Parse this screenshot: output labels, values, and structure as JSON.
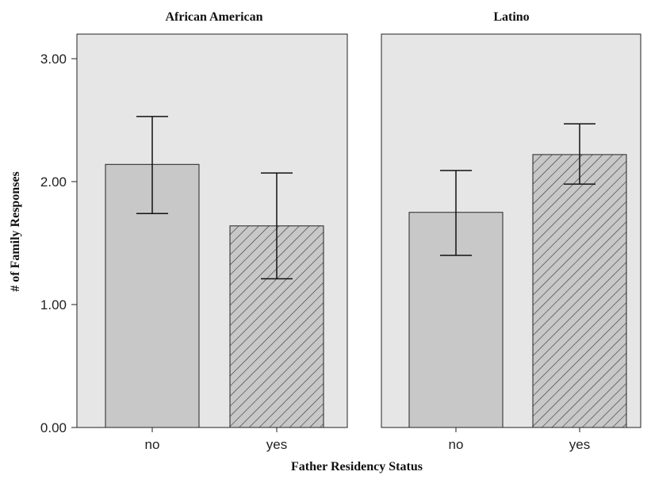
{
  "chart_data": {
    "type": "bar",
    "xlabel": "Father Residency Status",
    "ylabel": "# of Family Responses",
    "ylim": [
      0,
      3.2
    ],
    "yticks": [
      "0.00",
      "1.00",
      "2.00",
      "3.00"
    ],
    "categories": [
      "no",
      "yes"
    ],
    "grid": false,
    "panels": [
      {
        "title": "African American",
        "values": [
          2.14,
          1.64
        ],
        "error_low": [
          1.74,
          1.21
        ],
        "error_high": [
          2.53,
          2.07
        ]
      },
      {
        "title": "Latino",
        "values": [
          1.75,
          2.22
        ],
        "error_low": [
          1.4,
          1.98
        ],
        "error_high": [
          2.09,
          2.47
        ]
      }
    ],
    "bar_styles": [
      "solid",
      "hatched"
    ],
    "colors": {
      "panel_bg": "#e6e6e6",
      "bar_fill": "#c8c8c8",
      "stroke": "#222222"
    }
  }
}
